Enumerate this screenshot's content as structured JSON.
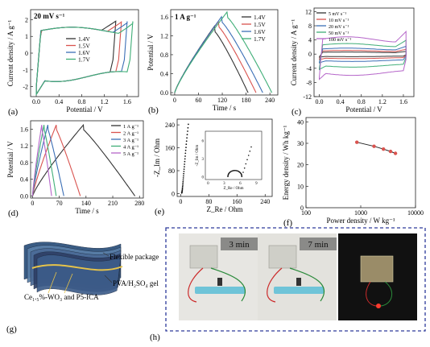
{
  "chart_data": [
    {
      "panel": "(a)",
      "type": "line",
      "annotation": "20 mV s⁻¹",
      "xlabel": "Potential / V",
      "ylabel": "Current density / A g⁻¹",
      "xlim": [
        -0.1,
        1.8
      ],
      "ylim": [
        -2.6,
        2.6
      ],
      "xticks": [
        "0.0",
        "0.4",
        "0.8",
        "1.2",
        "1.6"
      ],
      "yticks": [
        "-2",
        "-1",
        "0",
        "1",
        "2"
      ],
      "legend": "center",
      "series": [
        {
          "name": "1.4V",
          "color": "#333333",
          "vmax": 1.4
        },
        {
          "name": "1.5V",
          "color": "#d9534f",
          "vmax": 1.5
        },
        {
          "name": "1.6V",
          "color": "#3b6fb6",
          "vmax": 1.6
        },
        {
          "name": "1.7V",
          "color": "#3fae77",
          "vmax": 1.7
        }
      ]
    },
    {
      "panel": "(b)",
      "type": "line",
      "annotation": "1 A g⁻¹",
      "xlabel": "Time / s",
      "ylabel": "Potential / V",
      "xlim": [
        -10,
        260
      ],
      "ylim": [
        -0.05,
        1.75
      ],
      "xticks": [
        "0",
        "60",
        "120",
        "180",
        "240"
      ],
      "yticks": [
        "0.0",
        "0.4",
        "0.8",
        "1.2",
        "1.6"
      ],
      "legend": "top-right",
      "series": [
        {
          "name": "1.4V",
          "color": "#333333",
          "vmax": 1.4,
          "tpeak": 100,
          "tend": 185
        },
        {
          "name": "1.5V",
          "color": "#d9534f",
          "vmax": 1.5,
          "tpeak": 110,
          "tend": 205
        },
        {
          "name": "1.6V",
          "color": "#3b6fb6",
          "vmax": 1.6,
          "tpeak": 118,
          "tend": 222
        },
        {
          "name": "1.7V",
          "color": "#3fae77",
          "vmax": 1.7,
          "tpeak": 132,
          "tend": 245
        }
      ]
    },
    {
      "panel": "(c)",
      "type": "line",
      "xlabel": "Potential / V",
      "ylabel": "Current density / A g⁻¹",
      "xlim": [
        -0.1,
        1.8
      ],
      "ylim": [
        -12,
        13
      ],
      "xticks": [
        "0.0",
        "0.4",
        "0.8",
        "1.2",
        "1.6"
      ],
      "yticks": [
        "-12",
        "-8",
        "-4",
        "0",
        "4",
        "8",
        "12"
      ],
      "legend": "top-left",
      "series": [
        {
          "name": "5 mV s⁻¹",
          "color": "#333333",
          "amp": 0.9
        },
        {
          "name": "10 mV s⁻¹",
          "color": "#d9534f",
          "amp": 1.6
        },
        {
          "name": "20 mV s⁻¹",
          "color": "#3b6fb6",
          "amp": 2.6
        },
        {
          "name": "50 mV s⁻¹",
          "color": "#3fae77",
          "amp": 4.6
        },
        {
          "name": "100 mV s⁻¹",
          "color": "#b565c9",
          "amp": 7.5
        }
      ]
    },
    {
      "panel": "(d)",
      "type": "line",
      "xlabel": "Time / s",
      "ylabel": "Potential / V",
      "xlim": [
        -5,
        290
      ],
      "ylim": [
        -0.05,
        1.8
      ],
      "xticks": [
        "0",
        "70",
        "140",
        "210",
        "280"
      ],
      "yticks": [
        "0.0",
        "0.4",
        "0.8",
        "1.2",
        "1.6"
      ],
      "legend": "top-right",
      "series": [
        {
          "name": "1 A g⁻¹",
          "color": "#333333",
          "tpeak": 133,
          "tend": 268
        },
        {
          "name": "2 A g⁻¹",
          "color": "#d9534f",
          "tpeak": 62,
          "tend": 125
        },
        {
          "name": "3 A g⁻¹",
          "color": "#3b6fb6",
          "tpeak": 40,
          "tend": 82
        },
        {
          "name": "4 A g⁻¹",
          "color": "#3fae77",
          "tpeak": 30,
          "tend": 62
        },
        {
          "name": "5 A g⁻¹",
          "color": "#b565c9",
          "tpeak": 24,
          "tend": 50
        }
      ]
    },
    {
      "panel": "(e)",
      "type": "scatter",
      "xlabel": "Z_Re / Ohm",
      "ylabel": "-Z_Im / Ohm",
      "xlim": [
        -10,
        260
      ],
      "ylim": [
        -10,
        260
      ],
      "xticks": [
        "0",
        "80",
        "160",
        "240"
      ],
      "yticks": [
        "0",
        "80",
        "160",
        "240"
      ],
      "inset": {
        "xlabel": "Z_Re / Ohm",
        "ylabel": "-Z_Im / Ohm",
        "xticks": [
          "0",
          "3",
          "6",
          "9"
        ],
        "yticks": [
          "0",
          "3",
          "6"
        ]
      }
    },
    {
      "panel": "(f)",
      "type": "line",
      "xlabel": "Power density / W kg⁻¹",
      "ylabel": "Energy density / Wh kg⁻¹",
      "xlim": [
        100,
        10000
      ],
      "xscale": "log",
      "ylim": [
        0,
        42
      ],
      "xticks": [
        "100",
        "1000",
        "10000"
      ],
      "yticks": [
        "0",
        "10",
        "20",
        "30",
        "40"
      ],
      "series": [
        {
          "name": "",
          "color": "#d9534f",
          "x": [
            850,
            1750,
            2600,
            3500,
            4300
          ],
          "y": [
            30.5,
            28.6,
            27.3,
            26.2,
            25.3
          ]
        }
      ]
    }
  ],
  "panel_g": {
    "label": "(g)",
    "labels": [
      "Flexible package",
      "PVA/H₂SO₄ gel",
      "Ce₁.₅%-WO₃ and P5-ICA"
    ]
  },
  "panel_h": {
    "label": "(h)",
    "times": [
      "3 min",
      "7 min"
    ]
  },
  "colors": {
    "black": "#333333",
    "red": "#d9534f",
    "blue": "#3b6fb6",
    "green": "#3fae77",
    "purple": "#b565c9"
  }
}
